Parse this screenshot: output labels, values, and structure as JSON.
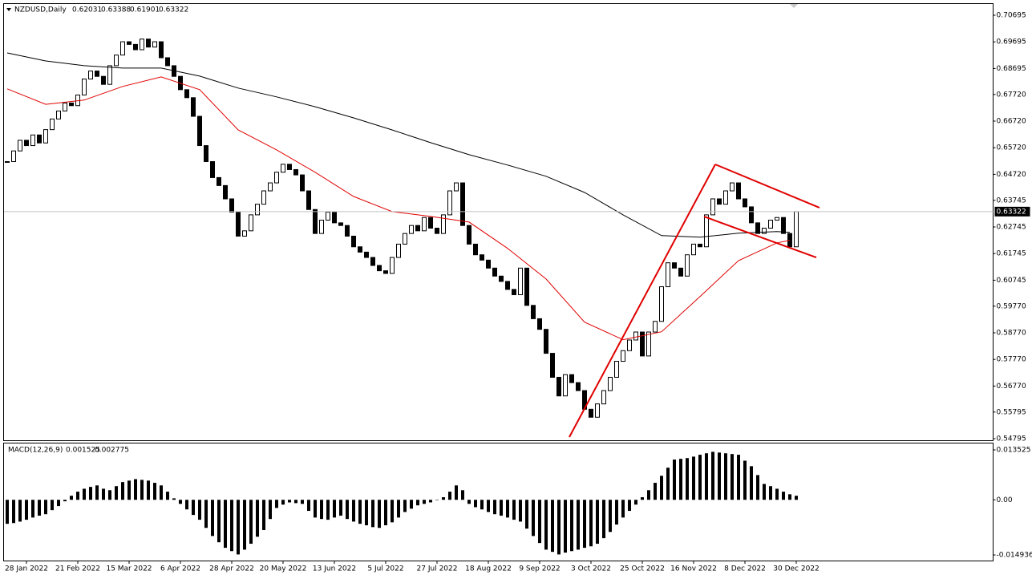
{
  "chart_data": [
    {
      "type": "candlestick",
      "title": "NZDUSD,Daily",
      "header_values": [
        0.62031,
        0.63388,
        0.61901,
        0.63322
      ],
      "categories": [
        null,
        null,
        null,
        "28 Jan 2022",
        null,
        null,
        null,
        null,
        null,
        null,
        null,
        "21 Feb 2022",
        null,
        null,
        null,
        null,
        null,
        null,
        null,
        "15 Mar 2022",
        null,
        null,
        null,
        null,
        null,
        null,
        null,
        "6 Apr 2022",
        null,
        null,
        null,
        null,
        null,
        null,
        null,
        "28 Apr 2022",
        null,
        null,
        null,
        null,
        null,
        null,
        null,
        "20 May 2022",
        null,
        null,
        null,
        null,
        null,
        null,
        null,
        "13 Jun 2022",
        null,
        null,
        null,
        null,
        null,
        null,
        null,
        "5 Jul 2022",
        null,
        null,
        null,
        null,
        null,
        null,
        null,
        "27 Jul 2022",
        null,
        null,
        null,
        null,
        null,
        null,
        null,
        "18 Aug 2022",
        null,
        null,
        null,
        null,
        null,
        null,
        null,
        "9 Sep 2022",
        null,
        null,
        null,
        null,
        null,
        null,
        null,
        "3 Oct 2022",
        null,
        null,
        null,
        null,
        null,
        null,
        null,
        "25 Oct 2022",
        null,
        null,
        null,
        null,
        null,
        null,
        null,
        "16 Nov 2022",
        null,
        null,
        null,
        null,
        null,
        null,
        null,
        "8 Dec 2022",
        null,
        null,
        null,
        null,
        null,
        null,
        null,
        "30 Dec 2022"
      ],
      "close": [
        0.652,
        0.656,
        0.66,
        0.658,
        0.662,
        0.659,
        0.664,
        0.668,
        0.671,
        0.674,
        0.673,
        0.677,
        0.683,
        0.686,
        0.684,
        0.681,
        0.688,
        0.692,
        0.697,
        0.696,
        0.694,
        0.698,
        0.695,
        0.697,
        0.691,
        0.688,
        0.684,
        0.679,
        0.676,
        0.669,
        0.658,
        0.652,
        0.646,
        0.643,
        0.638,
        0.633,
        0.624,
        0.626,
        0.632,
        0.636,
        0.641,
        0.644,
        0.648,
        0.651,
        0.649,
        0.647,
        0.641,
        0.634,
        0.625,
        0.63,
        0.633,
        0.629,
        0.628,
        0.624,
        0.62,
        0.618,
        0.616,
        0.613,
        0.611,
        0.61,
        0.616,
        0.621,
        0.625,
        0.628,
        0.626,
        0.631,
        0.627,
        0.625,
        0.632,
        0.641,
        0.644,
        0.628,
        0.621,
        0.617,
        0.615,
        0.612,
        0.609,
        0.607,
        0.604,
        0.602,
        0.612,
        0.598,
        0.593,
        0.589,
        0.58,
        0.571,
        0.564,
        0.572,
        0.569,
        0.566,
        0.559,
        0.556,
        0.561,
        0.566,
        0.571,
        0.577,
        0.581,
        0.585,
        0.588,
        0.579,
        0.588,
        0.592,
        0.605,
        0.614,
        0.612,
        0.609,
        0.617,
        0.621,
        0.62,
        0.632,
        0.638,
        0.636,
        0.641,
        0.644,
        0.638,
        0.635,
        0.629,
        0.625,
        0.627,
        0.63,
        0.631,
        0.625,
        0.62,
        0.6332
      ],
      "bull_color": "#ffffff",
      "bear_color": "#000000",
      "series": [
        {
          "color": "#000000",
          "x": [
            0,
            6,
            12,
            18,
            24,
            30,
            36,
            42,
            48,
            54,
            60,
            66,
            72,
            78,
            84,
            90,
            96,
            102,
            108,
            114,
            120,
            122
          ],
          "values": [
            0.6928,
            0.6898,
            0.688,
            0.6871,
            0.6871,
            0.6841,
            0.6796,
            0.6763,
            0.6726,
            0.6684,
            0.6639,
            0.6591,
            0.6546,
            0.6507,
            0.6465,
            0.6404,
            0.632,
            0.6242,
            0.6236,
            0.6251,
            0.6257,
            0.6254
          ]
        },
        {
          "color": "#e00000",
          "x": [
            0,
            6,
            12,
            18,
            24,
            30,
            36,
            42,
            48,
            54,
            60,
            66,
            72,
            78,
            84,
            90,
            96,
            102,
            108,
            114,
            120,
            122
          ],
          "values": [
            0.6793,
            0.6735,
            0.6751,
            0.6802,
            0.6838,
            0.679,
            0.6639,
            0.6564,
            0.648,
            0.6389,
            0.6332,
            0.6314,
            0.6293,
            0.6194,
            0.6079,
            0.5917,
            0.5851,
            0.5881,
            0.6013,
            0.6148,
            0.6215,
            0.6224
          ]
        }
      ],
      "last_price": 0.63322,
      "ylim": [
        0.54735,
        0.71117
      ],
      "yticks": [
        0.70695,
        0.69695,
        0.68695,
        {
          "value": 0.6772,
          "label": "0.67720"
        },
        {
          "value": 0.6672,
          "label": "0.66720"
        },
        {
          "value": 0.6572,
          "label": "0.65720"
        },
        {
          "value": 0.6472,
          "label": "0.64720"
        },
        0.63745,
        0.62745,
        0.61745,
        0.60745,
        {
          "value": 0.5977,
          "label": "0.59770"
        },
        {
          "value": 0.5877,
          "label": "0.58770"
        },
        {
          "value": 0.5777,
          "label": "0.57770"
        },
        {
          "value": 0.5677,
          "label": "0.56770"
        },
        0.55795,
        0.54795
      ]
    },
    {
      "type": "histogram",
      "title": "MACD(12,26,9)",
      "header_values": [
        0.001525,
        0.002775
      ],
      "color": "#000000",
      "values": [
        -0.0065,
        -0.0063,
        -0.0059,
        -0.0054,
        -0.0048,
        -0.0043,
        -0.0039,
        -0.0028,
        -0.0017,
        -0.0004,
        0.0011,
        0.0022,
        0.003,
        0.0035,
        0.0039,
        0.003,
        0.0026,
        0.0037,
        0.0048,
        0.0052,
        0.0056,
        0.0054,
        0.0052,
        0.0046,
        0.0039,
        0.0022,
        0.0004,
        -0.0011,
        -0.0026,
        -0.0041,
        -0.0054,
        -0.0076,
        -0.0098,
        -0.0115,
        -0.013,
        -0.0139,
        -0.0148,
        -0.0135,
        -0.0119,
        -0.01,
        -0.0082,
        -0.0052,
        -0.0022,
        -0.0013,
        -0.0007,
        -0.0009,
        -0.0011,
        -0.003,
        -0.0048,
        -0.0052,
        -0.0054,
        -0.0048,
        -0.0043,
        -0.0052,
        -0.0059,
        -0.0065,
        -0.0069,
        -0.0074,
        -0.0076,
        -0.0069,
        -0.0061,
        -0.0048,
        -0.0033,
        -0.0024,
        -0.0015,
        -0.0011,
        -0.0007,
        0,
        0.0007,
        0.0022,
        0.0039,
        0.0026,
        -0.0011,
        -0.002,
        -0.0026,
        -0.0033,
        -0.0039,
        -0.0043,
        -0.0048,
        -0.0054,
        -0.0059,
        -0.0078,
        -0.0098,
        -0.0117,
        -0.0135,
        -0.0141,
        -0.0148,
        -0.0143,
        -0.0139,
        -0.0135,
        -0.013,
        -0.0126,
        -0.0119,
        -0.0104,
        -0.0087,
        -0.0067,
        -0.0048,
        -0.003,
        -0.0013,
        0.0007,
        0.0026,
        0.0046,
        0.0065,
        0.0087,
        0.0109,
        0.0111,
        0.0113,
        0.0117,
        0.0122,
        0.0126,
        0.013,
        0.0128,
        0.0126,
        0.0124,
        0.0122,
        0.0106,
        0.0091,
        0.0067,
        0.0043,
        0.0037,
        0.003,
        0.0022,
        0.0015,
        0.0011
      ],
      "ylim": [
        -0.01667,
        0.01526
      ],
      "yticks": [
        0.013525,
        {
          "value": 0,
          "label": "0.00"
        },
        -0.014936
      ]
    }
  ]
}
